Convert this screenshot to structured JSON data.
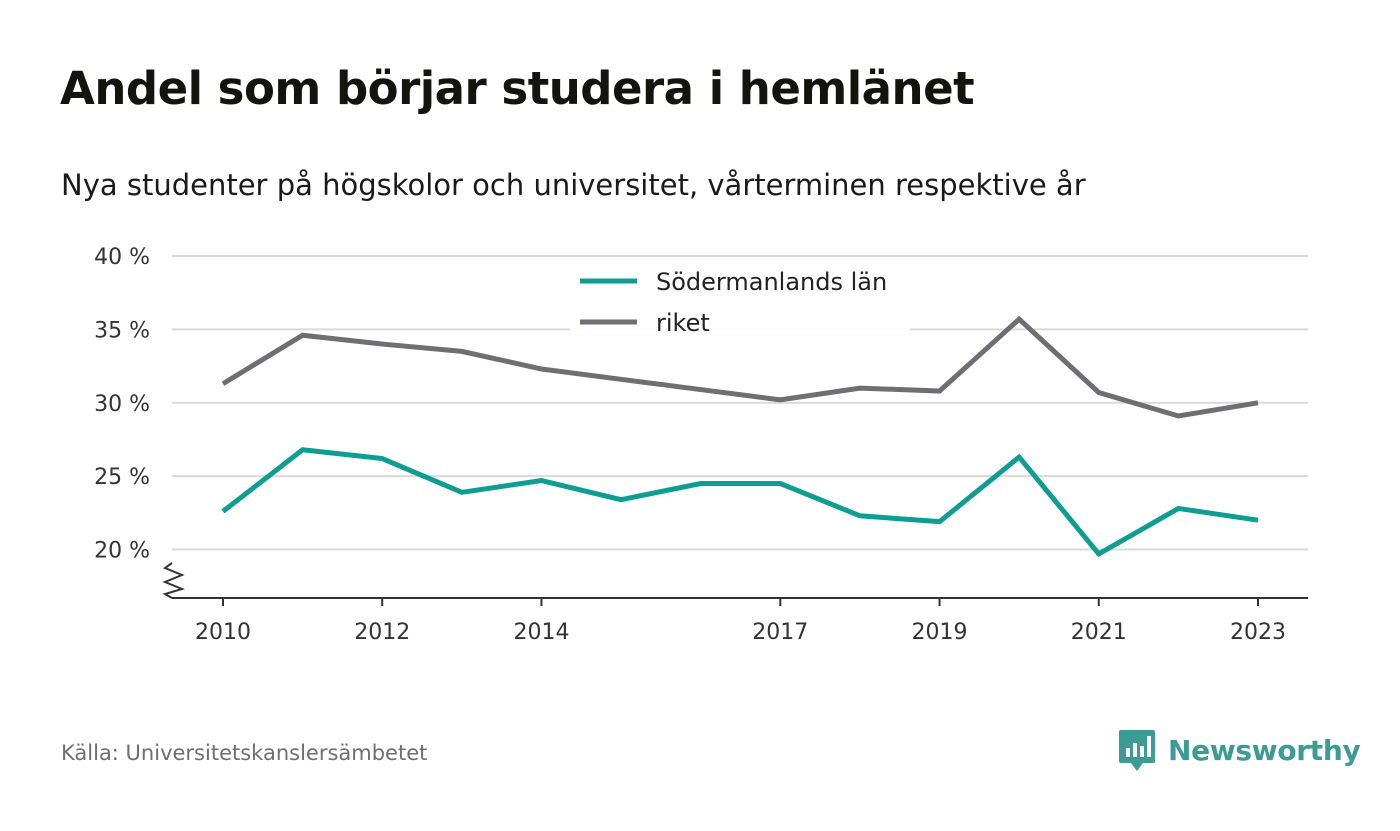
{
  "header": {
    "title": "Andel som börjar studera i hemlänet",
    "subtitle": "Nya studenter på högskolor och universitet, vårterminen respektive år"
  },
  "footer": {
    "source": "Källa: Universitetskanslersämbetet",
    "brand": "Newsworthy"
  },
  "colors": {
    "series_primary": "#0e9d93",
    "series_secondary": "#6f6e75",
    "grid": "#dadada",
    "axis": "#333333",
    "brand": "#3d9a94"
  },
  "icons": {
    "brand": "bar-chart-speech-bubble-icon",
    "axis_break": "zigzag-break-icon"
  },
  "chart_data": {
    "type": "line",
    "title": "Andel som börjar studera i hemlänet",
    "subtitle": "Nya studenter på högskolor och universitet, vårterminen respektive år",
    "x": [
      2010,
      2011,
      2012,
      2013,
      2014,
      2015,
      2016,
      2017,
      2018,
      2019,
      2020,
      2021,
      2022,
      2023
    ],
    "x_tick_labels": [
      "2010",
      "2012",
      "2014",
      "2017",
      "2019",
      "2021",
      "2023"
    ],
    "y_tick_labels": [
      "20 %",
      "25 %",
      "30 %",
      "35 %",
      "40 %"
    ],
    "y_ticks": [
      20,
      25,
      30,
      35,
      40
    ],
    "ylim": [
      16.7,
      40
    ],
    "y_axis_break": true,
    "grid": "horizontal",
    "legend": "top-center",
    "series": [
      {
        "name": "Södermanlands län",
        "color": "#0e9d93",
        "values": [
          22.6,
          26.8,
          26.2,
          23.9,
          24.7,
          23.4,
          24.5,
          24.5,
          22.3,
          21.9,
          26.3,
          19.7,
          22.8,
          22.0
        ]
      },
      {
        "name": "riket",
        "color": "#6f6e75",
        "values": [
          31.3,
          34.6,
          34.0,
          33.5,
          32.3,
          31.6,
          30.9,
          30.2,
          31.0,
          30.8,
          35.7,
          30.7,
          29.1,
          30.0
        ]
      }
    ]
  }
}
